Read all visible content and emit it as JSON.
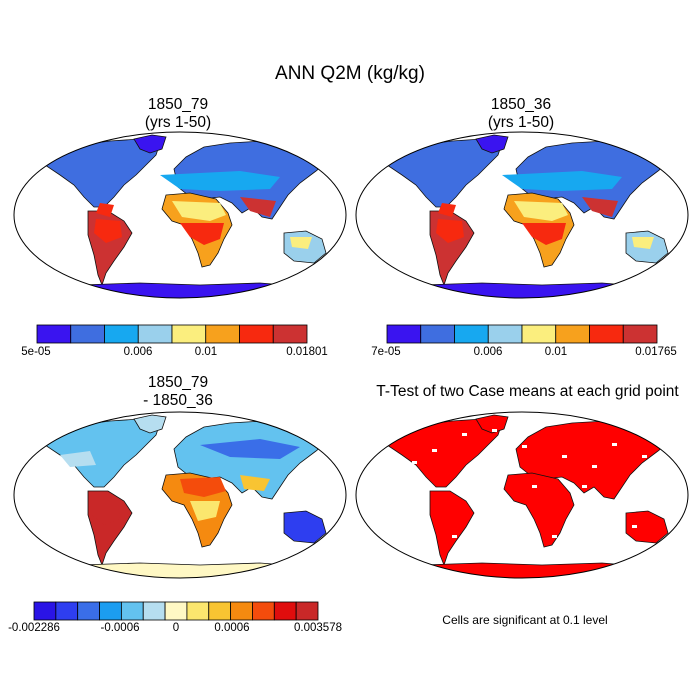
{
  "figure": {
    "title": "ANN Q2M (kg/kg)"
  },
  "chart_data": [
    {
      "type": "heatmap",
      "panel": "top-left",
      "title_line1": "1850_79",
      "title_line2": "(yrs 1-50)",
      "colorbar": {
        "colors": [
          "#3a14f0",
          "#3f6ee0",
          "#17a8f0",
          "#9ad0ec",
          "#fbee7e",
          "#f7a11d",
          "#f7290f",
          "#cc3232"
        ],
        "tick_labels": [
          "5e-05",
          "0.006",
          "0.01",
          "0.01801"
        ]
      }
    },
    {
      "type": "heatmap",
      "panel": "top-right",
      "title_line1": "1850_36",
      "title_line2": "(yrs 1-50)",
      "colorbar": {
        "colors": [
          "#3a14f0",
          "#3f6ee0",
          "#17a8f0",
          "#9ad0ec",
          "#fbee7e",
          "#f7a11d",
          "#f7290f",
          "#cc3232"
        ],
        "tick_labels": [
          "7e-05",
          "0.006",
          "0.01",
          "0.01765"
        ]
      }
    },
    {
      "type": "heatmap",
      "panel": "bottom-left",
      "title_line1": "1850_79",
      "title_line2": "- 1850_36",
      "colorbar": {
        "colors": [
          "#2a14e6",
          "#2e3ef0",
          "#3a6ee8",
          "#1c9df0",
          "#63c2ef",
          "#b6def0",
          "#fff8c4",
          "#fbe66e",
          "#f8c432",
          "#f58a10",
          "#f44c0c",
          "#e00d0d",
          "#c92828"
        ],
        "tick_labels": [
          "-0.002286",
          "-0.0006",
          "0",
          "0.0006",
          "0.003578"
        ]
      }
    },
    {
      "type": "heatmap",
      "panel": "bottom-right",
      "title": "T-Test of two Case means at each grid point",
      "note": "Cells are significant at 0.1 level",
      "colors": {
        "significant": "#ff0000"
      }
    }
  ]
}
